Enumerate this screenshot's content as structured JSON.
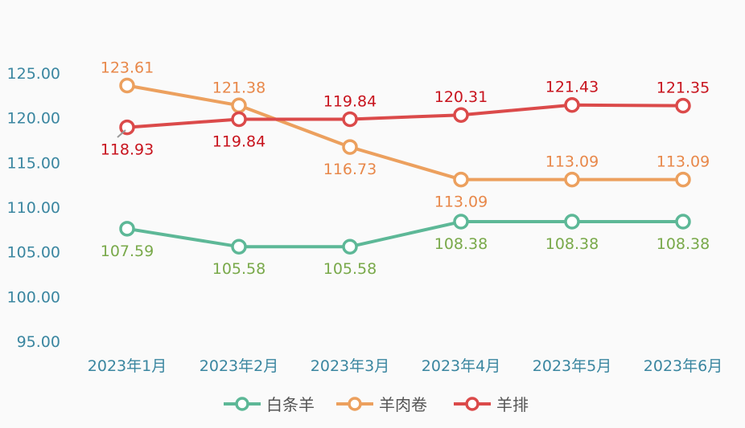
{
  "chart_data": {
    "type": "line",
    "title": "",
    "xlabel": "",
    "ylabel": "",
    "categories": [
      "2023年1月",
      "2023年2月",
      "2023年3月",
      "2023年4月",
      "2023年5月",
      "2023年6月"
    ],
    "yticks": [
      "95.00",
      "100.00",
      "105.00",
      "110.00",
      "115.00",
      "120.00",
      "125.00"
    ],
    "ylim": [
      95,
      125
    ],
    "grid": false,
    "legend_position": "bottom",
    "series": [
      {
        "name": "白条羊",
        "color": "#5db897",
        "label_color": "#79a94a",
        "values": [
          107.59,
          105.58,
          105.58,
          108.38,
          108.38,
          108.38
        ],
        "labels": [
          "107.59",
          "105.58",
          "105.58",
          "108.38",
          "108.38",
          "108.38"
        ]
      },
      {
        "name": "羊肉卷",
        "color": "#eca05e",
        "label_color": "#e8884a",
        "values": [
          123.61,
          121.38,
          116.73,
          113.09,
          113.09,
          113.09
        ],
        "labels": [
          "123.61",
          "121.38",
          "116.73",
          "113.09",
          "113.09",
          "113.09"
        ]
      },
      {
        "name": "羊排",
        "color": "#db4a4a",
        "label_color": "#c8141e",
        "values": [
          118.93,
          119.84,
          119.84,
          120.31,
          121.43,
          121.35
        ],
        "labels": [
          "118.93",
          "119.84",
          "119.84",
          "120.31",
          "121.43",
          "121.35"
        ]
      }
    ]
  }
}
